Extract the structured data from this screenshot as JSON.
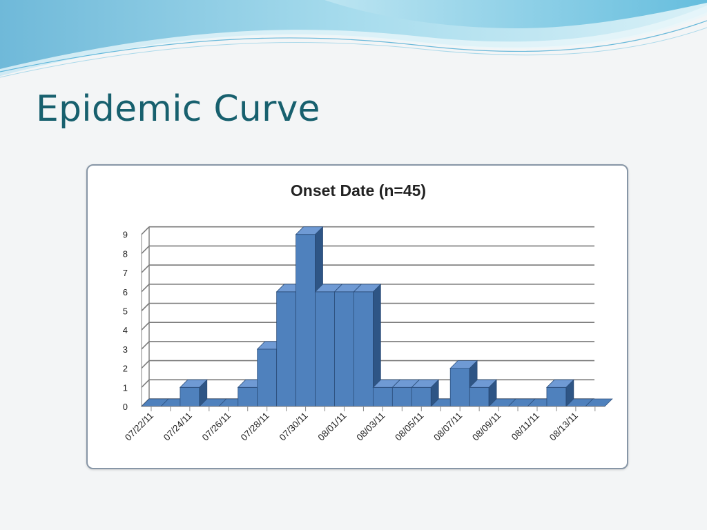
{
  "slide": {
    "title": "Epidemic Curve"
  },
  "colors": {
    "title": "#17606e",
    "bar_front": "#4f81bd",
    "bar_top": "#6f9ad4",
    "bar_side": "#2e5585",
    "frame_border": "#8796a6",
    "header_wave": "#9fd3e6"
  },
  "chart_data": {
    "type": "bar",
    "style": "3d-column",
    "title": "Onset Date  (n=45)",
    "xlabel": "",
    "ylabel": "",
    "ylim": [
      0,
      9
    ],
    "yticks": [
      0,
      1,
      2,
      3,
      4,
      5,
      6,
      7,
      8,
      9
    ],
    "grid": true,
    "legend": "none",
    "categories": [
      "07/22/11",
      "07/23/11",
      "07/24/11",
      "07/25/11",
      "07/26/11",
      "07/27/11",
      "07/28/11",
      "07/29/11",
      "07/30/11",
      "07/31/11",
      "08/01/11",
      "08/02/11",
      "08/03/11",
      "08/04/11",
      "08/05/11",
      "08/06/11",
      "08/07/11",
      "08/08/11",
      "08/09/11",
      "08/10/11",
      "08/11/11",
      "08/12/11",
      "08/13/11",
      "08/14/11"
    ],
    "values": [
      0,
      0,
      1,
      0,
      0,
      1,
      3,
      6,
      9,
      6,
      6,
      6,
      1,
      1,
      1,
      0,
      2,
      1,
      0,
      0,
      0,
      1,
      0,
      0
    ],
    "tick_labels": [
      "07/22/11",
      "07/24/11",
      "07/26/11",
      "07/28/11",
      "07/30/11",
      "08/01/11",
      "08/03/11",
      "08/05/11",
      "08/07/11",
      "08/09/11",
      "08/11/11",
      "08/13/11"
    ]
  }
}
